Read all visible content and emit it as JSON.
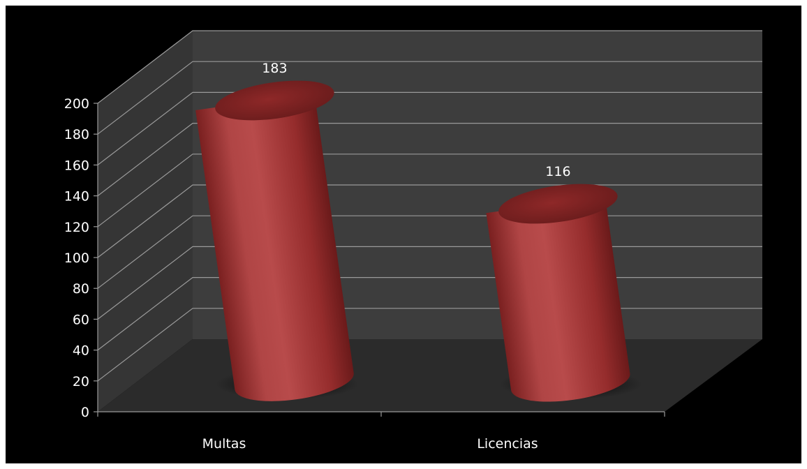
{
  "chart_data": {
    "type": "bar",
    "style": "3d-cylinder",
    "categories": [
      "Multas",
      "Licencias"
    ],
    "series": [
      {
        "values": [
          183,
          116
        ],
        "color": "#a23a3a"
      }
    ],
    "data_labels": [
      "183",
      "116"
    ],
    "title": "",
    "xlabel": "",
    "ylabel": "",
    "ylim": [
      0,
      200
    ],
    "yticks": [
      "0",
      "20",
      "40",
      "60",
      "80",
      "100",
      "120",
      "140",
      "160",
      "180",
      "200"
    ],
    "grid": true,
    "legend": "none",
    "colors": {
      "background": "#000000",
      "wall": "#3c3c3c",
      "floor": "#2a2a2a",
      "gridline": "#9a9a9a",
      "text": "#ffffff"
    }
  }
}
